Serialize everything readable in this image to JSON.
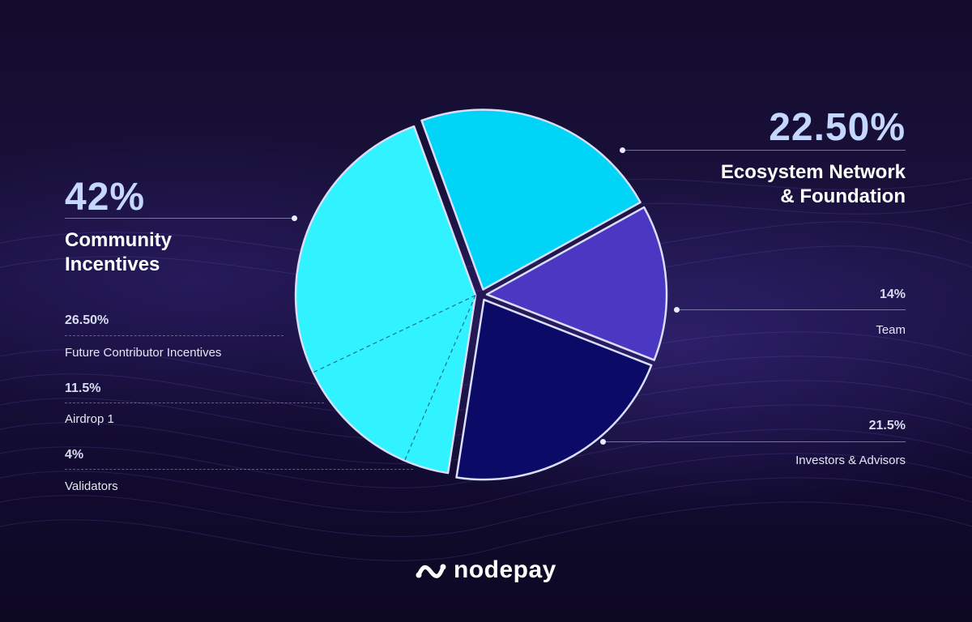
{
  "chart_data": {
    "type": "pie",
    "title": "",
    "slices": [
      {
        "label": "Ecosystem Network & Foundation",
        "value": 22.5,
        "value_label": "22.50%",
        "color": "#00d4f7"
      },
      {
        "label": "Team",
        "value": 14,
        "value_label": "14%",
        "color": "#4b38c2"
      },
      {
        "label": "Investors & Advisors",
        "value": 21.5,
        "value_label": "21.5%",
        "color": "#0b0a66"
      },
      {
        "label": "Community Incentives",
        "value": 42,
        "value_label": "42%",
        "color": "#30f3ff",
        "sub_slices": [
          {
            "label": "Validators",
            "value": 4,
            "value_label": "4%"
          },
          {
            "label": "Airdrop 1",
            "value": 11.5,
            "value_label": "11.5%"
          },
          {
            "label": "Future Contributor Incentives",
            "value": 26.5,
            "value_label": "26.50%"
          }
        ]
      }
    ]
  },
  "labels": {
    "community_pct": "42%",
    "community_line1": "Community",
    "community_line2": "Incentives",
    "future_pct": "26.50%",
    "future_label": "Future Contributor Incentives",
    "airdrop_pct": "11.5%",
    "airdrop_label": "Airdrop 1",
    "validators_pct": "4%",
    "validators_label": "Validators",
    "ecosystem_pct": "22.50%",
    "ecosystem_line1": "Ecosystem Network",
    "ecosystem_line2": "& Foundation",
    "team_pct": "14%",
    "team_label": "Team",
    "investors_pct": "21.5%",
    "investors_label": "Investors & Advisors"
  },
  "brand": {
    "name": "nodepay",
    "logo_icon": "wave-dots-icon"
  },
  "colors": {
    "background": "#140c2c",
    "accent_light": "#c6d7ff"
  }
}
